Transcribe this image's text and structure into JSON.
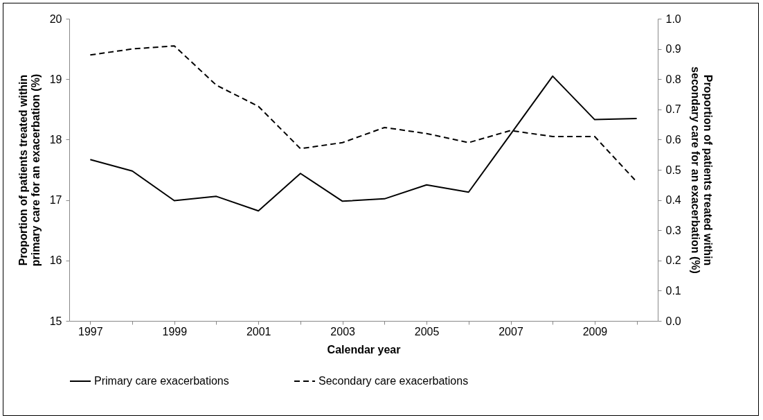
{
  "chart_data": {
    "type": "line",
    "xlabel": "Calendar year",
    "ylabel": "Proportion of patients treated within primary care for an exacerbation (%)",
    "y2label": "Proportion of patients treated within secondary care for an exacerbation (%)",
    "categories": [
      "1997",
      null,
      "1999",
      null,
      "2001",
      null,
      "2003",
      null,
      "2005",
      null,
      "2007",
      null,
      "2009",
      null
    ],
    "series": [
      {
        "name": "Primary care exacerbations",
        "color": "#000000",
        "line_style": "solid",
        "values": [
          17.67,
          17.48,
          16.99,
          17.06,
          16.82,
          17.44,
          16.98,
          17.02,
          17.25,
          17.13,
          18.09,
          19.05,
          18.33,
          18.35
        ]
      },
      {
        "name": "Secondary care exacerbations",
        "color": "#000000",
        "line_style": "dashed",
        "axis": "y2",
        "values": [
          0.88,
          0.9,
          0.91,
          0.78,
          0.71,
          0.57,
          0.59,
          0.64,
          0.62,
          0.59,
          0.63,
          0.61,
          0.61,
          0.46
        ]
      }
    ],
    "ylim": [
      15,
      20
    ],
    "yticks": [
      15,
      16,
      17,
      18,
      19,
      20
    ],
    "y2lim": [
      0,
      1
    ],
    "y2ticks": [
      {
        "value": 0,
        "label": "0.0"
      },
      0.1,
      0.2,
      0.3,
      0.4,
      0.5,
      0.6,
      0.7,
      0.8,
      0.9,
      {
        "value": 1,
        "label": "1.0"
      }
    ],
    "grid": false,
    "legend": "bottom",
    "marker": "none"
  }
}
